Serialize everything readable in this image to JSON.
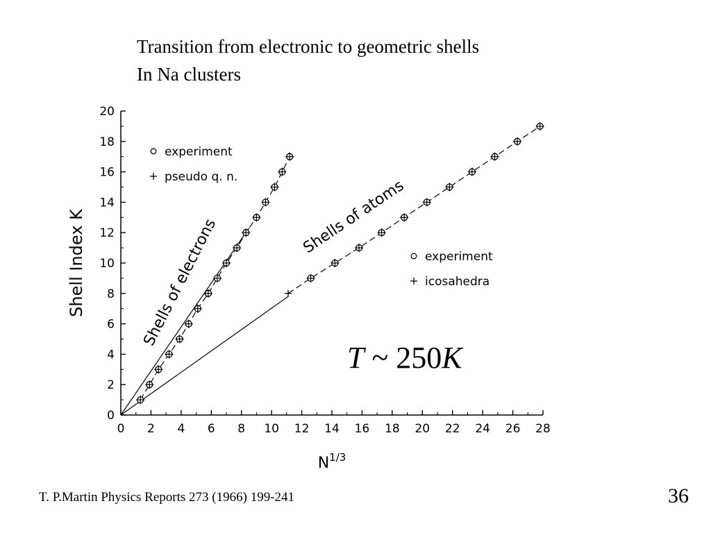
{
  "slide": {
    "title_line1": "Transition from electronic to geometric shells",
    "title_line2": "In Na clusters",
    "temperature_symbol": "T",
    "temperature_tilde": "~",
    "temperature_value": "250",
    "temperature_unit": "K",
    "citation": "T. P.Martin Physics Reports 273 (1966) 199-241",
    "page_number": "36"
  },
  "chart_data": {
    "type": "scatter",
    "xlabel": "N",
    "xlabel_sup": "1/3",
    "ylabel": "Shell Index K",
    "xlim": [
      0,
      28
    ],
    "ylim": [
      0,
      20
    ],
    "x_ticks": [
      "0",
      "2",
      "4",
      "6",
      "8",
      "10",
      "12",
      "14",
      "16",
      "18",
      "20",
      "22",
      "24",
      "26",
      "28"
    ],
    "y_ticks": [
      "0",
      "2",
      "4",
      "6",
      "8",
      "10",
      "12",
      "14",
      "16",
      "18",
      "20"
    ],
    "grid": false,
    "annotations": {
      "electrons": "Shells of electrons",
      "atoms": "Shells of atoms"
    },
    "legends": [
      {
        "placement": "top-left",
        "entries": [
          {
            "marker": "o",
            "label": "experiment"
          },
          {
            "marker": "+",
            "label": "pseudo q. n."
          }
        ]
      },
      {
        "placement": "middle-right",
        "entries": [
          {
            "marker": "o",
            "label": "experiment"
          },
          {
            "marker": "+",
            "label": "icosahedra"
          }
        ]
      }
    ],
    "series": [
      {
        "group": "electrons",
        "marker": "circle-plus",
        "x": [
          1.3,
          1.9,
          2.5,
          3.2,
          3.9,
          4.5,
          5.1,
          5.8,
          6.4,
          7.0,
          7.7,
          8.3,
          9.0,
          9.6,
          10.2,
          10.7,
          11.2
        ],
        "y": [
          1,
          2,
          3,
          4,
          5,
          6,
          7,
          8,
          9,
          10,
          11,
          12,
          13,
          14,
          15,
          16,
          17
        ]
      },
      {
        "group": "atoms",
        "marker": "circle-plus",
        "x": [
          12.6,
          14.2,
          15.8,
          17.3,
          18.8,
          20.3,
          21.8,
          23.3,
          24.8,
          26.3,
          27.8
        ],
        "y": [
          9,
          10,
          11,
          12,
          13,
          14,
          15,
          16,
          17,
          18,
          19
        ]
      },
      {
        "group": "atoms",
        "marker": "plus",
        "x": [
          11.1
        ],
        "y": [
          8
        ]
      }
    ],
    "reference_lines": [
      {
        "group": "electrons",
        "style": "solid",
        "x": [
          0,
          8.5
        ],
        "y": [
          0,
          12.3
        ]
      },
      {
        "group": "atoms",
        "style": "solid",
        "x": [
          0,
          11.1
        ],
        "y": [
          0,
          7.8
        ]
      }
    ]
  }
}
